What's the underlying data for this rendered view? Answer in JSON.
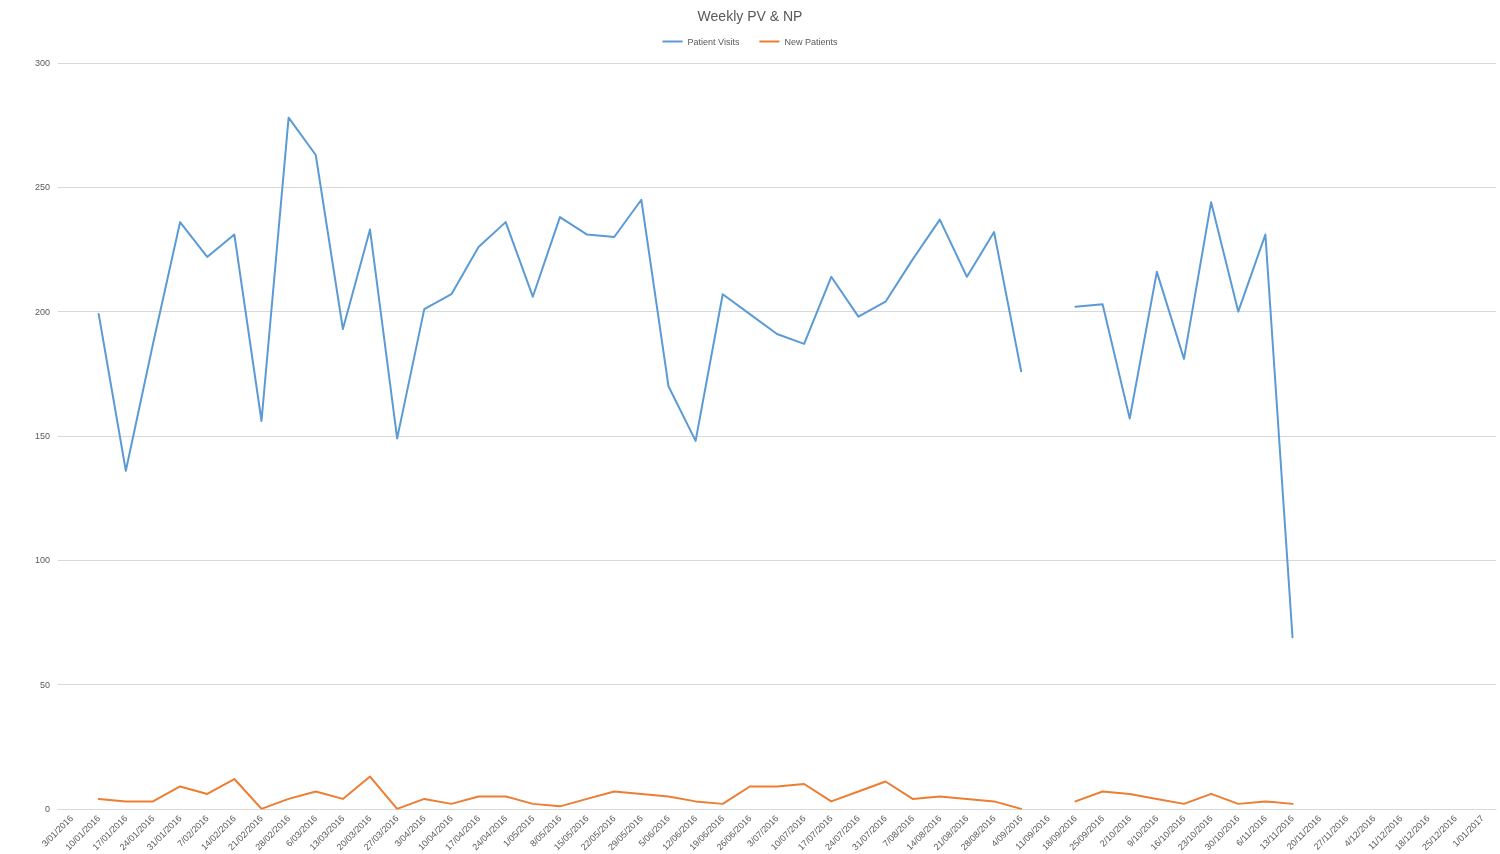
{
  "chart_data": {
    "type": "line",
    "title": "Weekly PV & NP",
    "categories": [
      "3/01/2016",
      "10/01/2016",
      "17/01/2016",
      "24/01/2016",
      "31/01/2016",
      "7/02/2016",
      "14/02/2016",
      "21/02/2016",
      "28/02/2016",
      "6/03/2016",
      "13/03/2016",
      "20/03/2016",
      "27/03/2016",
      "3/04/2016",
      "10/04/2016",
      "17/04/2016",
      "24/04/2016",
      "1/05/2016",
      "8/05/2016",
      "15/05/2016",
      "22/05/2016",
      "29/05/2016",
      "5/06/2016",
      "12/06/2016",
      "19/06/2016",
      "26/06/2016",
      "3/07/2016",
      "10/07/2016",
      "17/07/2016",
      "24/07/2016",
      "31/07/2016",
      "7/08/2016",
      "14/08/2016",
      "21/08/2016",
      "28/08/2016",
      "4/09/2016",
      "11/09/2016",
      "18/09/2016",
      "25/09/2016",
      "2/10/2016",
      "9/10/2016",
      "16/10/2016",
      "23/10/2016",
      "30/10/2016",
      "6/11/2016",
      "13/11/2016",
      "20/11/2016",
      "27/11/2016",
      "4/12/2016",
      "11/12/2016",
      "18/12/2016",
      "25/12/2016",
      "1/01/2017"
    ],
    "series": [
      {
        "name": "Patient Visits",
        "color": "#5b9bd5",
        "values": [
          null,
          199,
          136,
          187,
          236,
          222,
          231,
          156,
          278,
          263,
          193,
          233,
          149,
          201,
          207,
          226,
          236,
          206,
          238,
          231,
          230,
          245,
          170,
          148,
          207,
          199,
          191,
          187,
          214,
          198,
          204,
          221,
          237,
          214,
          232,
          176,
          null,
          202,
          203,
          157,
          216,
          181,
          244,
          200,
          231,
          69,
          null,
          null,
          null,
          null,
          null,
          null,
          null
        ]
      },
      {
        "name": "New Patients",
        "color": "#ed7d31",
        "values": [
          null,
          4,
          3,
          3,
          9,
          6,
          12,
          0,
          4,
          7,
          4,
          13,
          0,
          4,
          2,
          5,
          5,
          2,
          1,
          4,
          7,
          6,
          5,
          3,
          2,
          9,
          9,
          10,
          3,
          7,
          11,
          4,
          5,
          4,
          3,
          0,
          null,
          3,
          7,
          6,
          4,
          2,
          6,
          2,
          3,
          2,
          null,
          null,
          null,
          null,
          null,
          null,
          null
        ]
      }
    ],
    "ylim": [
      0,
      300
    ],
    "yticks": [
      0,
      50,
      100,
      150,
      200,
      250,
      300
    ],
    "grid": "y",
    "legend": "top",
    "marker": "none",
    "line_style": "solid"
  }
}
